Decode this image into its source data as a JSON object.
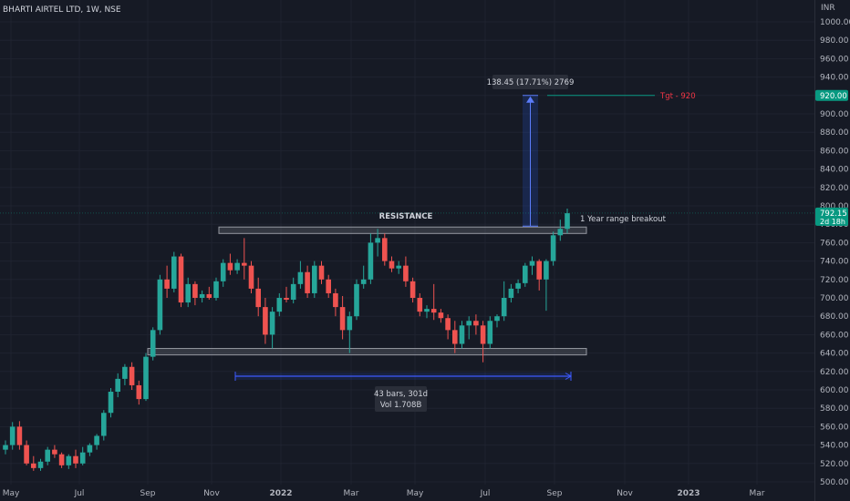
{
  "header": {
    "symbol": "BHARTI AIRTEL LTD, 1W, NSE"
  },
  "chart_data": {
    "type": "candlestick",
    "currency": "INR",
    "ylim": [
      500,
      1020
    ],
    "y_ticks": [
      500,
      520,
      540,
      560,
      580,
      600,
      620,
      640,
      660,
      680,
      700,
      720,
      740,
      760,
      780,
      800,
      820,
      840,
      860,
      880,
      900,
      920,
      940,
      960,
      980,
      1000
    ],
    "x_labels": [
      "May",
      "Jul",
      "Sep",
      "Nov",
      "2022",
      "Mar",
      "May",
      "Jul",
      "Sep",
      "Nov",
      "2023",
      "Mar"
    ],
    "candles": [
      [
        535,
        545,
        530,
        540
      ],
      [
        540,
        565,
        535,
        560
      ],
      [
        560,
        566,
        535,
        540
      ],
      [
        540,
        545,
        518,
        520
      ],
      [
        520,
        528,
        512,
        515
      ],
      [
        515,
        525,
        512,
        522
      ],
      [
        522,
        538,
        518,
        535
      ],
      [
        535,
        540,
        526,
        530
      ],
      [
        530,
        532,
        515,
        518
      ],
      [
        518,
        530,
        514,
        528
      ],
      [
        528,
        535,
        515,
        520
      ],
      [
        520,
        538,
        518,
        532
      ],
      [
        532,
        542,
        528,
        540
      ],
      [
        540,
        552,
        535,
        550
      ],
      [
        550,
        578,
        545,
        575
      ],
      [
        575,
        602,
        570,
        598
      ],
      [
        598,
        618,
        592,
        612
      ],
      [
        612,
        628,
        605,
        625
      ],
      [
        625,
        630,
        600,
        605
      ],
      [
        605,
        610,
        584,
        590
      ],
      [
        590,
        640,
        588,
        636
      ],
      [
        636,
        668,
        632,
        665
      ],
      [
        665,
        725,
        660,
        720
      ],
      [
        720,
        735,
        700,
        710
      ],
      [
        710,
        750,
        706,
        745
      ],
      [
        745,
        748,
        690,
        695
      ],
      [
        695,
        722,
        690,
        715
      ],
      [
        715,
        718,
        692,
        700
      ],
      [
        700,
        708,
        695,
        704
      ],
      [
        704,
        712,
        698,
        700
      ],
      [
        700,
        722,
        697,
        718
      ],
      [
        718,
        742,
        712,
        738
      ],
      [
        738,
        748,
        725,
        730
      ],
      [
        730,
        742,
        726,
        738
      ],
      [
        738,
        765,
        720,
        735
      ],
      [
        735,
        740,
        705,
        710
      ],
      [
        710,
        722,
        680,
        690
      ],
      [
        690,
        700,
        650,
        660
      ],
      [
        660,
        690,
        645,
        685
      ],
      [
        685,
        705,
        680,
        700
      ],
      [
        700,
        712,
        695,
        698
      ],
      [
        698,
        722,
        694,
        715
      ],
      [
        715,
        740,
        710,
        728
      ],
      [
        728,
        735,
        700,
        705
      ],
      [
        705,
        740,
        700,
        735
      ],
      [
        735,
        740,
        715,
        720
      ],
      [
        720,
        725,
        700,
        705
      ],
      [
        705,
        710,
        680,
        690
      ],
      [
        690,
        702,
        655,
        665
      ],
      [
        665,
        685,
        640,
        680
      ],
      [
        680,
        720,
        676,
        715
      ],
      [
        715,
        735,
        710,
        720
      ],
      [
        720,
        770,
        715,
        760
      ],
      [
        760,
        775,
        745,
        765
      ],
      [
        765,
        770,
        735,
        740
      ],
      [
        740,
        745,
        728,
        732
      ],
      [
        732,
        740,
        726,
        735
      ],
      [
        735,
        745,
        712,
        718
      ],
      [
        718,
        722,
        695,
        700
      ],
      [
        700,
        705,
        680,
        685
      ],
      [
        685,
        692,
        678,
        688
      ],
      [
        688,
        715,
        676,
        684
      ],
      [
        684,
        688,
        673,
        678
      ],
      [
        678,
        682,
        655,
        665
      ],
      [
        665,
        675,
        640,
        650
      ],
      [
        650,
        675,
        645,
        670
      ],
      [
        670,
        680,
        655,
        675
      ],
      [
        675,
        682,
        660,
        670
      ],
      [
        670,
        675,
        630,
        650
      ],
      [
        650,
        680,
        645,
        675
      ],
      [
        675,
        682,
        668,
        680
      ],
      [
        680,
        718,
        675,
        700
      ],
      [
        700,
        715,
        695,
        710
      ],
      [
        710,
        720,
        705,
        716
      ],
      [
        716,
        738,
        712,
        735
      ],
      [
        735,
        745,
        725,
        740
      ],
      [
        740,
        742,
        708,
        720
      ],
      [
        720,
        742,
        686,
        740
      ],
      [
        740,
        772,
        735,
        768
      ],
      [
        768,
        785,
        762,
        775
      ],
      [
        775,
        797,
        770,
        792
      ]
    ],
    "resistance_zone": [
      770,
      777
    ],
    "support_zone": [
      638,
      645
    ],
    "annotations": {
      "resistance": "RESISTANCE",
      "breakout": "1 Year range breakout",
      "target": "Tgt - 920",
      "measure": "138.45 (17.71%) 2769",
      "range_bars": "43 bars, 301d",
      "range_vol": "Vol 1.708B"
    },
    "last_price": {
      "value": "792.15",
      "countdown": "2d 18h"
    },
    "target_price": {
      "value": "920.00"
    },
    "colors": {
      "up": "#26a69a",
      "down": "#ef5350",
      "price_tag": "#089981",
      "target_text": "#f23645",
      "range": "#2962ff",
      "measure_fill": "#2962ff",
      "zone": "#787b86"
    }
  }
}
